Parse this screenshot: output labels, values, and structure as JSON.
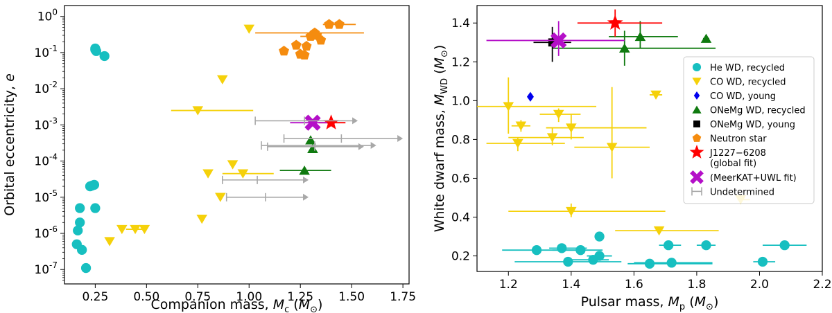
{
  "chart_data": [
    {
      "type": "scatter",
      "id": "left",
      "title": "",
      "xlabel": "Companion mass, M_c (M_⊙)",
      "xlabel_parts": {
        "pre": "Companion mass, ",
        "sym": "M",
        "sub": "c",
        "unit_pre": " (",
        "unit": "M",
        "unit_sub": "⊙",
        "unit_post": ")"
      },
      "ylabel": "Orbital eccentricity, e",
      "ylabel_parts": {
        "pre": "Orbital eccentricity, ",
        "sym": "e"
      },
      "yscale": "log",
      "xlim": [
        0.1,
        1.78
      ],
      "ylim": [
        4e-08,
        2.0
      ],
      "xticks": [
        0.25,
        0.5,
        0.75,
        1.0,
        1.25,
        1.5,
        1.75
      ],
      "xtick_labels": [
        "0.25",
        "0.50",
        "0.75",
        "1.00",
        "1.25",
        "1.50",
        "1.75"
      ],
      "yticks_exp": [
        -7,
        -6,
        -5,
        -4,
        -3,
        -2,
        -1,
        0
      ],
      "ytick_base": "10",
      "series": [
        {
          "name": "He WD, recycled",
          "marker": "circle",
          "color": "#17bfc0",
          "points": [
            [
              0.25,
              0.13
            ],
            [
              0.255,
              0.11
            ],
            [
              0.25,
              0.12
            ],
            [
              0.295,
              0.08
            ],
            [
              0.175,
              5e-06
            ],
            [
              0.175,
              2e-06
            ],
            [
              0.165,
              1.2e-06
            ],
            [
              0.16,
              5e-07
            ],
            [
              0.185,
              3.5e-07
            ],
            [
              0.205,
              1.1e-07
            ],
            [
              0.225,
              2e-05
            ],
            [
              0.235,
              2.1e-05
            ],
            [
              0.245,
              2.2e-05
            ],
            [
              0.25,
              5e-06
            ]
          ]
        },
        {
          "name": "CO WD, recycled",
          "marker": "tri_down",
          "color": "#f5d10a",
          "points": [
            [
              1.0,
              0.45
            ],
            [
              0.87,
              0.018
            ],
            [
              0.8,
              4.5e-05
            ],
            [
              0.92,
              8e-05
            ],
            [
              0.86,
              1e-05
            ],
            [
              0.77,
              2.5e-06
            ],
            [
              0.49,
              1.3e-06
            ],
            [
              0.445,
              1.3e-06
            ],
            [
              0.38,
              1.3e-06
            ],
            [
              0.32,
              6e-07
            ],
            [
              0.97,
              4.5e-05
            ],
            [
              0.75,
              0.0025
            ]
          ],
          "xerr": [
            [
              0.75,
              0.62,
              1.02
            ],
            [
              0.97,
              0.87,
              1.12
            ],
            [
              0.445,
              0.4,
              0.49
            ]
          ]
        },
        {
          "name": "ONeMg WD, recycled",
          "marker": "tri_up",
          "color": "#0f7a0f",
          "points": [
            [
              1.3,
              0.00038
            ],
            [
              1.31,
              0.00022
            ],
            [
              1.27,
              5.5e-05
            ]
          ],
          "xerr": [
            [
              1.27,
              1.15,
              1.4
            ]
          ]
        },
        {
          "name": "Neutron star",
          "marker": "pentagon",
          "color": "#f58c0f",
          "points": [
            [
              1.39,
              0.6
            ],
            [
              1.44,
              0.6
            ],
            [
              1.32,
              0.35
            ],
            [
              1.3,
              0.28
            ],
            [
              1.33,
              0.3
            ],
            [
              1.35,
              0.22
            ],
            [
              1.28,
              0.15
            ],
            [
              1.23,
              0.16
            ],
            [
              1.17,
              0.11
            ],
            [
              1.25,
              0.09
            ],
            [
              1.27,
              0.085
            ]
          ],
          "xerr": [
            [
              1.39,
              1.36,
              1.52
            ],
            [
              1.32,
              1.03,
              1.56
            ],
            [
              1.3,
              1.25,
              1.36
            ]
          ]
        },
        {
          "name": "J1227−6208 (global fit)",
          "marker": "star",
          "color": "#ff0000",
          "points": [
            [
              1.4,
              0.00115
            ]
          ],
          "xerr": [
            [
              1.4,
              1.34,
              1.47
            ]
          ]
        },
        {
          "name": "(MeerKAT+UWL fit)",
          "marker": "x",
          "color": "#b40fc8",
          "points": [
            [
              1.31,
              0.00115
            ]
          ],
          "xerr": [
            [
              1.31,
              1.2,
              1.38
            ]
          ]
        },
        {
          "name": "Undetermined",
          "marker": "arrow",
          "color": "#a8a8a8",
          "ranges": [
            [
              1.03,
              1.27,
              1.53,
              0.0013
            ],
            [
              1.17,
              1.45,
              1.75,
              0.00042
            ],
            [
              1.06,
              1.32,
              1.62,
              0.00027
            ],
            [
              1.09,
              1.32,
              1.56,
              0.00025
            ],
            [
              0.87,
              1.04,
              1.29,
              3e-05
            ],
            [
              0.89,
              1.08,
              1.29,
              1e-05
            ]
          ]
        }
      ]
    },
    {
      "type": "scatter",
      "id": "right",
      "title": "",
      "xlabel": "Pulsar mass, M_p (M_⊙)",
      "xlabel_parts": {
        "pre": "Pulsar mass, ",
        "sym": "M",
        "sub": "p",
        "unit_pre": " (",
        "unit": "M",
        "unit_sub": "⊙",
        "unit_post": ")"
      },
      "ylabel": "White dwarf mass, M_WD (M_⊙)",
      "ylabel_parts": {
        "pre": "White dwarf mass, ",
        "sym": "M",
        "sub": "WD",
        "unit_pre": " (",
        "unit": "M",
        "unit_sub": "⊙",
        "unit_post": ")"
      },
      "yscale": "linear",
      "xlim": [
        1.1,
        2.2
      ],
      "ylim": [
        0.12,
        1.49
      ],
      "xticks": [
        1.2,
        1.4,
        1.6,
        1.8,
        2.0,
        2.2
      ],
      "xtick_labels": [
        "1.2",
        "1.4",
        "1.6",
        "1.8",
        "2.0",
        "2.2"
      ],
      "yticks": [
        0.2,
        0.4,
        0.6,
        0.8,
        1.0,
        1.2,
        1.4
      ],
      "ytick_labels": [
        "0.2",
        "0.4",
        "0.6",
        "0.8",
        "1.0",
        "1.2",
        "1.4"
      ],
      "legend": {
        "position": "right"
      },
      "series": [
        {
          "name": "He WD, recycled",
          "marker": "circle",
          "color": "#17bfc0",
          "points": [
            [
              1.29,
              0.23,
              1.18,
              1.43
            ],
            [
              1.37,
              0.24,
              1.33,
              1.45
            ],
            [
              1.43,
              0.23,
              1.34,
              1.5
            ],
            [
              1.49,
              0.3,
              null,
              null
            ],
            [
              1.49,
              0.2,
              1.45,
              1.53
            ],
            [
              1.47,
              0.18,
              1.4,
              1.52
            ],
            [
              1.39,
              0.17,
              1.22,
              1.56
            ],
            [
              1.65,
              0.16,
              1.58,
              1.85
            ],
            [
              1.72,
              0.165,
              1.6,
              1.85
            ],
            [
              1.71,
              0.255,
              1.68,
              1.75
            ],
            [
              1.83,
              0.255,
              1.8,
              1.86
            ],
            [
              2.08,
              0.255,
              2.01,
              2.15
            ],
            [
              2.01,
              0.17,
              1.98,
              2.05
            ]
          ]
        },
        {
          "name": "CO WD, recycled",
          "marker": "tri_down",
          "color": "#f5d10a",
          "points": [
            [
              1.2,
              0.97,
              1.1,
              1.48,
              0.83,
              1.12
            ],
            [
              1.36,
              0.93,
              1.3,
              1.43,
              0.89,
              0.96
            ],
            [
              1.24,
              0.87,
              1.21,
              1.27,
              0.84,
              0.9
            ],
            [
              1.4,
              0.86,
              1.32,
              1.64,
              0.8,
              0.93
            ],
            [
              1.34,
              0.81,
              1.2,
              1.44,
              0.77,
              0.86
            ],
            [
              1.23,
              0.78,
              1.13,
              1.38,
              0.74,
              0.81
            ],
            [
              1.53,
              0.76,
              1.41,
              1.65,
              0.6,
              1.07
            ],
            [
              1.67,
              1.03,
              1.65,
              1.69,
              null,
              null
            ],
            [
              1.94,
              0.49,
              1.93,
              1.97,
              null,
              null
            ],
            [
              1.4,
              0.43,
              1.2,
              1.7,
              0.4,
              0.47
            ],
            [
              1.68,
              0.33,
              1.54,
              1.87,
              null,
              null
            ]
          ]
        },
        {
          "name": "CO WD, young",
          "marker": "diamond",
          "color": "#0000ee",
          "points": [
            [
              1.27,
              1.02
            ]
          ]
        },
        {
          "name": "ONeMg WD, recycled",
          "marker": "tri_up",
          "color": "#0f7a0f",
          "points": [
            [
              1.62,
              1.33,
              1.52,
              1.74,
              1.27,
              1.41
            ],
            [
              1.57,
              1.27,
              1.34,
              1.86,
              1.18,
              1.36
            ],
            [
              1.83,
              1.32,
              1.82,
              1.84,
              null,
              null
            ]
          ]
        },
        {
          "name": "ONeMg WD, young",
          "marker": "square",
          "color": "#000000",
          "points": [
            [
              1.34,
              1.3,
              1.28,
              1.4,
              1.2,
              1.38
            ]
          ]
        },
        {
          "name": "Neutron star",
          "marker": "pentagon",
          "color": "#f58c0f",
          "points": []
        },
        {
          "name": "J1227−6208 (global fit)",
          "marker": "star",
          "color": "#ff0000",
          "points": [
            [
              1.54,
              1.4,
              1.42,
              1.69,
              1.33,
              1.47
            ]
          ]
        },
        {
          "name": "(MeerKAT+UWL fit)",
          "marker": "x",
          "color": "#b40fc8",
          "points": [
            [
              1.36,
              1.31,
              1.13,
              1.57,
              1.23,
              1.41
            ]
          ]
        },
        {
          "name": "Undetermined",
          "marker": "errbar",
          "color": "#a8a8a8",
          "points": []
        }
      ]
    }
  ],
  "legend_entries": [
    {
      "label": "He WD, recycled",
      "marker": "circle",
      "color": "#17bfc0"
    },
    {
      "label": "CO WD, recycled",
      "marker": "tri_down",
      "color": "#f5d10a"
    },
    {
      "label": "CO WD, young",
      "marker": "diamond",
      "color": "#0000ee"
    },
    {
      "label": "ONeMg WD, recycled",
      "marker": "tri_up",
      "color": "#0f7a0f"
    },
    {
      "label": "ONeMg WD, young",
      "marker": "square",
      "color": "#000000"
    },
    {
      "label": "Neutron star",
      "marker": "pentagon",
      "color": "#f58c0f"
    },
    {
      "label": "J1227−6208",
      "label2": "(global fit)",
      "marker": "star",
      "color": "#ff0000"
    },
    {
      "label": "(MeerKAT+UWL fit)",
      "marker": "x",
      "color": "#b40fc8"
    },
    {
      "label": "Undetermined",
      "marker": "errbar",
      "color": "#a8a8a8"
    }
  ]
}
